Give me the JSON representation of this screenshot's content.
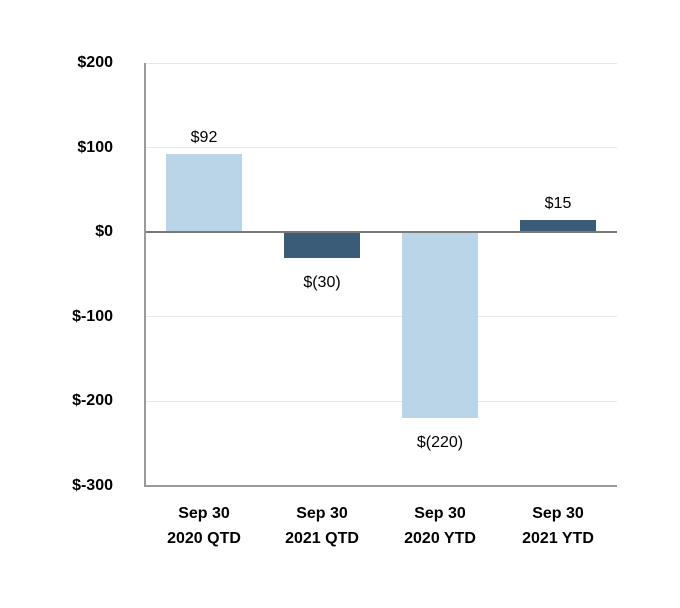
{
  "chart_data": {
    "type": "bar",
    "title": "",
    "xlabel": "",
    "ylabel": "",
    "categories": [
      "Sep 30 2020 QTD",
      "Sep 30 2021 QTD",
      "Sep 30 2020 YTD",
      "Sep 30 2021 YTD"
    ],
    "category_lines": [
      [
        "Sep 30",
        "2020 QTD"
      ],
      [
        "Sep 30",
        "2021 QTD"
      ],
      [
        "Sep 30",
        "2020 YTD"
      ],
      [
        "Sep 30",
        "2021 YTD"
      ]
    ],
    "values": [
      92,
      -30,
      -220,
      15
    ],
    "data_labels": [
      "$92",
      "$(30)",
      "$(220)",
      "$15"
    ],
    "bar_colors": [
      "#BAD5E8",
      "#3A5C78",
      "#BAD5E8",
      "#3A5C78"
    ],
    "y_axis": {
      "min": -300,
      "max": 200,
      "tick_values": [
        200,
        100,
        0,
        -100,
        -200,
        -300
      ],
      "tick_labels": [
        "$200",
        "$100",
        "$0",
        "$-100",
        "$-200",
        "$-300"
      ]
    },
    "grid": true,
    "legend": false
  },
  "colors": {
    "bar_light_blue": "#BAD5E8",
    "bar_dark_blue": "#3A5C78",
    "gridline": "#E8E8E8",
    "zero_line": "#7A7A7A",
    "axis_line": "#9A9A9A",
    "background": "#FFFFFF",
    "text": "#000000"
  }
}
